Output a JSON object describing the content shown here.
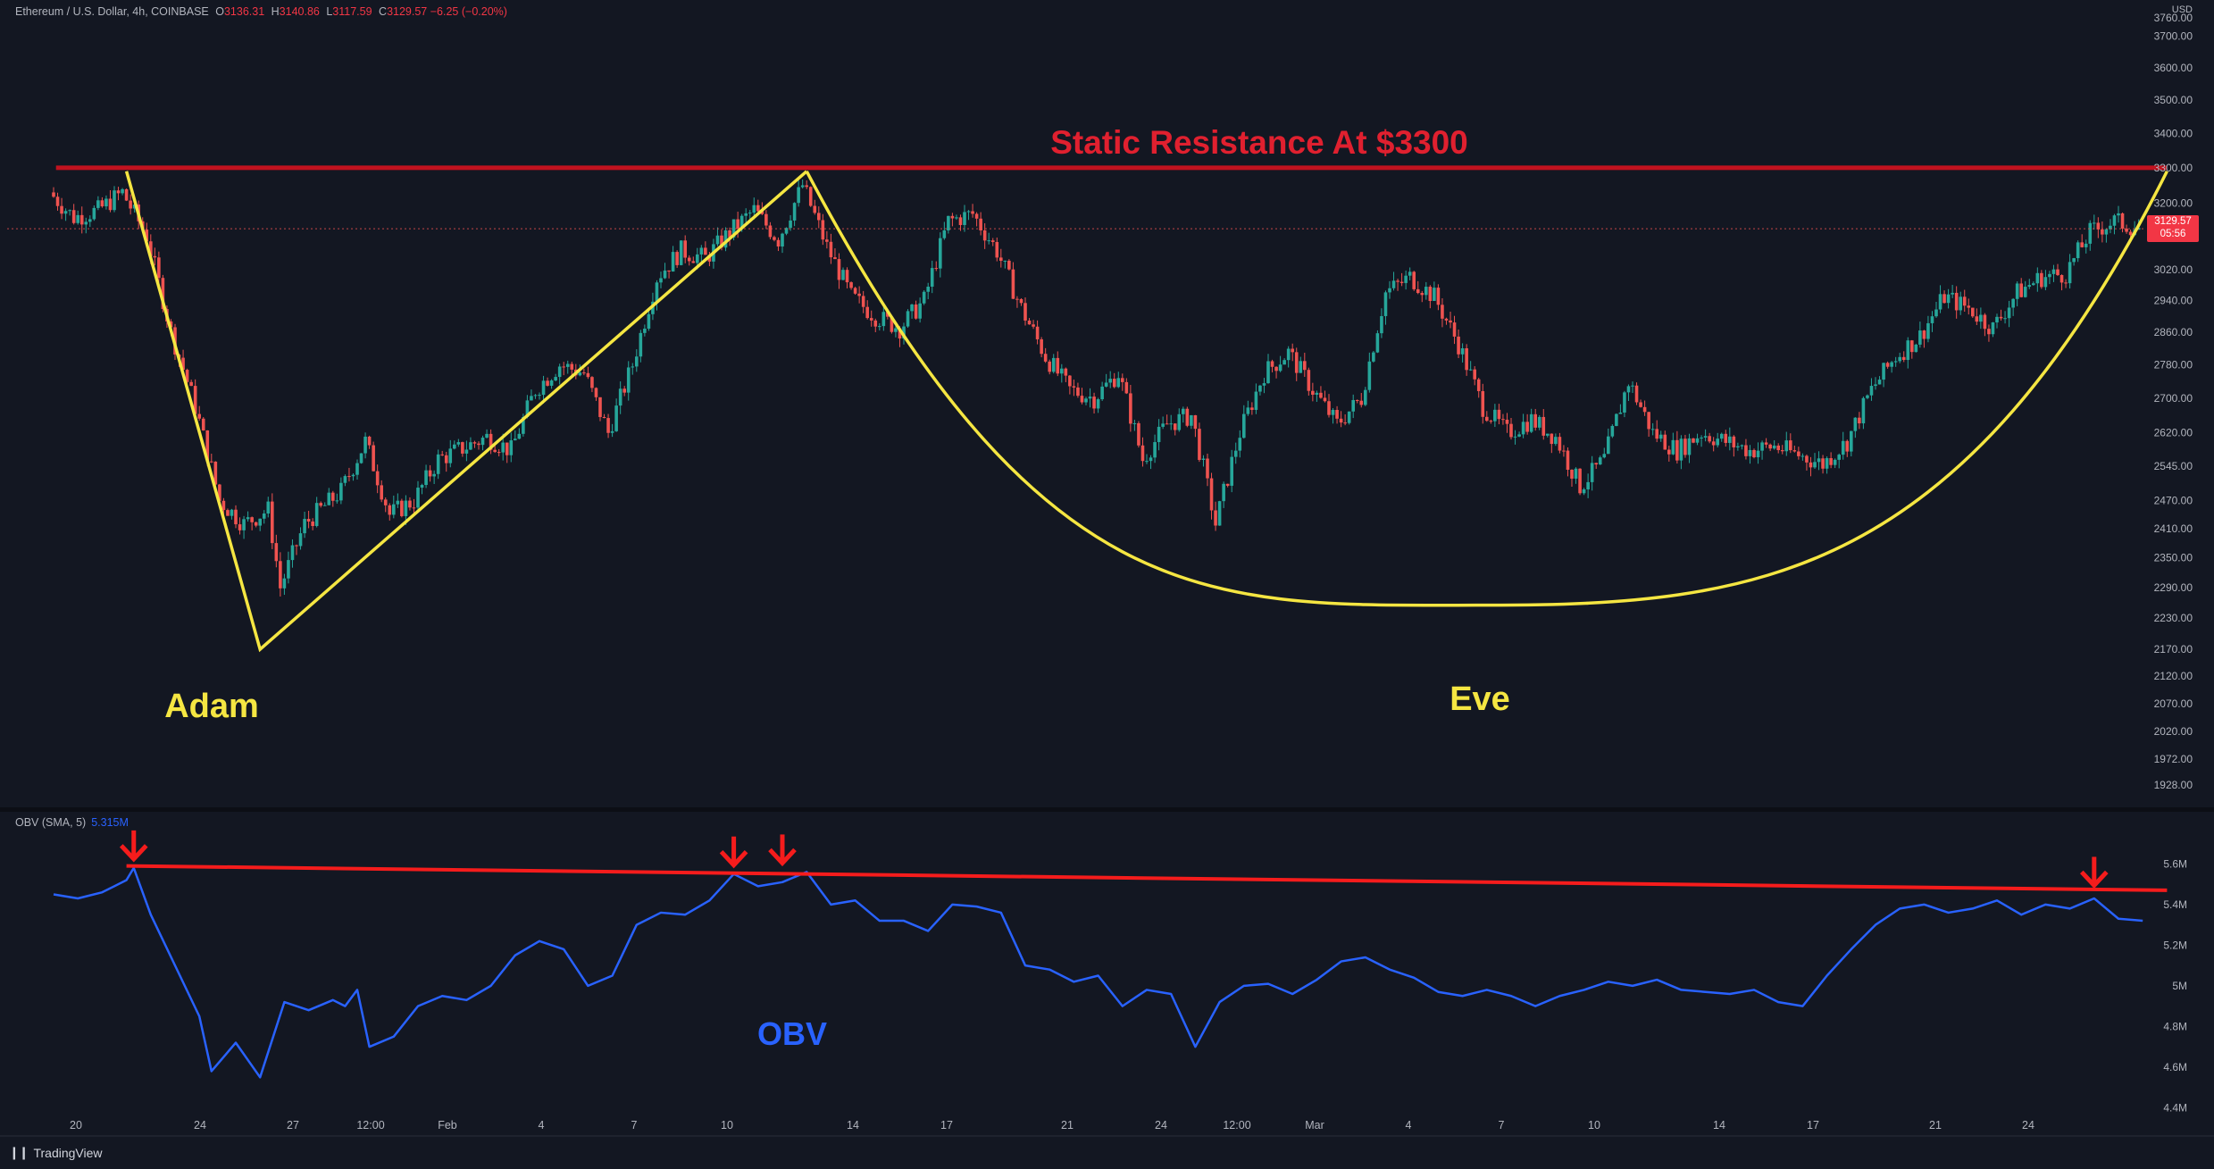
{
  "header": {
    "symbol": "Ethereum / U.S. Dollar, 4h, COINBASE",
    "o_label": "O",
    "o_value": "3136.31",
    "h_label": "H",
    "h_value": "3140.86",
    "l_label": "L",
    "l_value": "3117.59",
    "c_label": "C",
    "c_value": "3129.57",
    "change": "−6.25 (−0.20%)"
  },
  "currency": "USD",
  "price_tag": {
    "price": "3129.57",
    "countdown": "05:56"
  },
  "obv_header": {
    "name": "OBV (SMA, 5)",
    "value": "5.315M"
  },
  "footer": {
    "brand": "TradingView",
    "logo_glyph": "❙❙"
  },
  "colors": {
    "background": "#131722",
    "up": "#26a69a",
    "down": "#ef5350",
    "resistance": "#c1121f",
    "pattern": "#f5e642",
    "obv": "#2962ff",
    "obv_trend": "#f51c1c",
    "annotation_blue": "#2962ff"
  },
  "chart_data": [
    {
      "type": "candlestick",
      "title": "Ethereum / U.S. Dollar, 4h, COINBASE",
      "yscale": "log",
      "ylim": [
        1900,
        3760
      ],
      "y_ticks": [
        "3760.00",
        "3700.00",
        "3600.00",
        "3500.00",
        "3400.00",
        "3300.00",
        "3200.00",
        "3120.00",
        "3020.00",
        "2940.00",
        "2860.00",
        "2780.00",
        "2700.00",
        "2620.00",
        "2545.00",
        "2470.00",
        "2410.00",
        "2350.00",
        "2290.00",
        "2230.00",
        "2170.00",
        "2120.00",
        "2070.00",
        "2020.00",
        "1972.00",
        "1928.00"
      ],
      "x_ticks": [
        "20",
        "24",
        "27",
        "12:00",
        "Feb",
        "4",
        "7",
        "10",
        "14",
        "17",
        "21",
        "24",
        "12:00",
        "Mar",
        "4",
        "7",
        "10",
        "14",
        "17",
        "21",
        "24"
      ],
      "price_path": [
        {
          "day": 0.0,
          "price": 3230
        },
        {
          "day": 1.0,
          "price": 3160
        },
        {
          "day": 2.0,
          "price": 3180
        },
        {
          "day": 3.0,
          "price": 3230
        },
        {
          "day": 4.0,
          "price": 3110
        },
        {
          "day": 5.0,
          "price": 2860
        },
        {
          "day": 6.0,
          "price": 2680
        },
        {
          "day": 7.0,
          "price": 2470
        },
        {
          "day": 8.0,
          "price": 2420
        },
        {
          "day": 9.0,
          "price": 2450
        },
        {
          "day": 9.5,
          "price": 2290
        },
        {
          "day": 10.5,
          "price": 2420
        },
        {
          "day": 12.0,
          "price": 2490
        },
        {
          "day": 13.0,
          "price": 2600
        },
        {
          "day": 14.0,
          "price": 2440
        },
        {
          "day": 15.0,
          "price": 2470
        },
        {
          "day": 16.0,
          "price": 2560
        },
        {
          "day": 18.0,
          "price": 2610
        },
        {
          "day": 19.0,
          "price": 2580
        },
        {
          "day": 20.0,
          "price": 2720
        },
        {
          "day": 21.0,
          "price": 2780
        },
        {
          "day": 22.0,
          "price": 2760
        },
        {
          "day": 23.0,
          "price": 2620
        },
        {
          "day": 24.0,
          "price": 2780
        },
        {
          "day": 25.0,
          "price": 3000
        },
        {
          "day": 26.0,
          "price": 3070
        },
        {
          "day": 27.0,
          "price": 3050
        },
        {
          "day": 28.0,
          "price": 3120
        },
        {
          "day": 29.0,
          "price": 3180
        },
        {
          "day": 30.0,
          "price": 3100
        },
        {
          "day": 31.0,
          "price": 3250
        },
        {
          "day": 32.0,
          "price": 3080
        },
        {
          "day": 33.0,
          "price": 2950
        },
        {
          "day": 34.0,
          "price": 2900
        },
        {
          "day": 35.0,
          "price": 2870
        },
        {
          "day": 36.0,
          "price": 2940
        },
        {
          "day": 37.0,
          "price": 3150
        },
        {
          "day": 38.0,
          "price": 3170
        },
        {
          "day": 39.0,
          "price": 3070
        },
        {
          "day": 40.0,
          "price": 2920
        },
        {
          "day": 41.0,
          "price": 2800
        },
        {
          "day": 42.0,
          "price": 2720
        },
        {
          "day": 43.0,
          "price": 2700
        },
        {
          "day": 44.0,
          "price": 2760
        },
        {
          "day": 45.0,
          "price": 2560
        },
        {
          "day": 46.0,
          "price": 2640
        },
        {
          "day": 47.0,
          "price": 2660
        },
        {
          "day": 48.0,
          "price": 2420
        },
        {
          "day": 49.0,
          "price": 2620
        },
        {
          "day": 50.0,
          "price": 2760
        },
        {
          "day": 51.0,
          "price": 2810
        },
        {
          "day": 52.0,
          "price": 2720
        },
        {
          "day": 53.0,
          "price": 2640
        },
        {
          "day": 54.0,
          "price": 2700
        },
        {
          "day": 55.0,
          "price": 2960
        },
        {
          "day": 56.0,
          "price": 3000
        },
        {
          "day": 57.0,
          "price": 2950
        },
        {
          "day": 58.0,
          "price": 2830
        },
        {
          "day": 59.0,
          "price": 2680
        },
        {
          "day": 60.0,
          "price": 2620
        },
        {
          "day": 61.0,
          "price": 2650
        },
        {
          "day": 62.0,
          "price": 2610
        },
        {
          "day": 63.0,
          "price": 2500
        },
        {
          "day": 64.0,
          "price": 2560
        },
        {
          "day": 65.0,
          "price": 2740
        },
        {
          "day": 66.0,
          "price": 2620
        },
        {
          "day": 67.0,
          "price": 2580
        },
        {
          "day": 68.0,
          "price": 2620
        },
        {
          "day": 69.0,
          "price": 2600
        },
        {
          "day": 70.0,
          "price": 2580
        },
        {
          "day": 71.0,
          "price": 2590
        },
        {
          "day": 72.0,
          "price": 2570
        },
        {
          "day": 73.0,
          "price": 2550
        },
        {
          "day": 74.0,
          "price": 2600
        },
        {
          "day": 75.0,
          "price": 2720
        },
        {
          "day": 76.0,
          "price": 2800
        },
        {
          "day": 77.0,
          "price": 2850
        },
        {
          "day": 78.0,
          "price": 2950
        },
        {
          "day": 79.0,
          "price": 2920
        },
        {
          "day": 80.0,
          "price": 2870
        },
        {
          "day": 81.0,
          "price": 2960
        },
        {
          "day": 82.0,
          "price": 3000
        },
        {
          "day": 83.0,
          "price": 3010
        },
        {
          "day": 84.0,
          "price": 3120
        },
        {
          "day": 85.0,
          "price": 3150
        },
        {
          "day": 86.0,
          "price": 3130
        }
      ],
      "annotations": [
        {
          "text": "Static Resistance At $3300",
          "color": "#e0202f"
        },
        {
          "text": "Adam",
          "color": "#f5e642"
        },
        {
          "text": "Eve",
          "color": "#f5e642"
        }
      ],
      "resistance_level": 3300,
      "adam_pattern": [
        {
          "day": 3.0,
          "price": 3290
        },
        {
          "day": 8.5,
          "price": 2170
        },
        {
          "day": 31.0,
          "price": 3290
        }
      ],
      "eve_pattern": {
        "start": {
          "day": 31.0,
          "price": 3290
        },
        "bottom": {
          "day": 59.0,
          "price": 2255
        },
        "end": {
          "day": 87.0,
          "price": 3290
        }
      },
      "current_price": 3129.57
    },
    {
      "type": "line",
      "name": "OBV (SMA, 5)",
      "y_ticks": [
        "5.6M",
        "5.4M",
        "5.2M",
        "5M",
        "4.8M",
        "4.6M",
        "4.4M"
      ],
      "ylim": [
        4.38,
        5.72
      ],
      "values_path": [
        {
          "day": 0.0,
          "value": 5.45
        },
        {
          "day": 1.0,
          "value": 5.43
        },
        {
          "day": 2.0,
          "value": 5.46
        },
        {
          "day": 3.0,
          "value": 5.52
        },
        {
          "day": 3.3,
          "value": 5.58
        },
        {
          "day": 4.0,
          "value": 5.35
        },
        {
          "day": 5.0,
          "value": 5.1
        },
        {
          "day": 6.0,
          "value": 4.85
        },
        {
          "day": 6.5,
          "value": 4.58
        },
        {
          "day": 7.5,
          "value": 4.72
        },
        {
          "day": 8.5,
          "value": 4.55
        },
        {
          "day": 9.5,
          "value": 4.92
        },
        {
          "day": 10.5,
          "value": 4.88
        },
        {
          "day": 11.5,
          "value": 4.93
        },
        {
          "day": 12.0,
          "value": 4.9
        },
        {
          "day": 12.5,
          "value": 4.98
        },
        {
          "day": 13.0,
          "value": 4.7
        },
        {
          "day": 14.0,
          "value": 4.75
        },
        {
          "day": 15.0,
          "value": 4.9
        },
        {
          "day": 16.0,
          "value": 4.95
        },
        {
          "day": 17.0,
          "value": 4.93
        },
        {
          "day": 18.0,
          "value": 5.0
        },
        {
          "day": 19.0,
          "value": 5.15
        },
        {
          "day": 20.0,
          "value": 5.22
        },
        {
          "day": 21.0,
          "value": 5.18
        },
        {
          "day": 22.0,
          "value": 5.0
        },
        {
          "day": 23.0,
          "value": 5.05
        },
        {
          "day": 24.0,
          "value": 5.3
        },
        {
          "day": 25.0,
          "value": 5.36
        },
        {
          "day": 26.0,
          "value": 5.35
        },
        {
          "day": 27.0,
          "value": 5.42
        },
        {
          "day": 28.0,
          "value": 5.55
        },
        {
          "day": 29.0,
          "value": 5.49
        },
        {
          "day": 30.0,
          "value": 5.51
        },
        {
          "day": 31.0,
          "value": 5.56
        },
        {
          "day": 32.0,
          "value": 5.4
        },
        {
          "day": 33.0,
          "value": 5.42
        },
        {
          "day": 34.0,
          "value": 5.32
        },
        {
          "day": 35.0,
          "value": 5.32
        },
        {
          "day": 36.0,
          "value": 5.27
        },
        {
          "day": 37.0,
          "value": 5.4
        },
        {
          "day": 38.0,
          "value": 5.39
        },
        {
          "day": 39.0,
          "value": 5.36
        },
        {
          "day": 40.0,
          "value": 5.1
        },
        {
          "day": 41.0,
          "value": 5.08
        },
        {
          "day": 42.0,
          "value": 5.02
        },
        {
          "day": 43.0,
          "value": 5.05
        },
        {
          "day": 44.0,
          "value": 4.9
        },
        {
          "day": 45.0,
          "value": 4.98
        },
        {
          "day": 46.0,
          "value": 4.96
        },
        {
          "day": 47.0,
          "value": 4.7
        },
        {
          "day": 48.0,
          "value": 4.92
        },
        {
          "day": 49.0,
          "value": 5.0
        },
        {
          "day": 50.0,
          "value": 5.01
        },
        {
          "day": 51.0,
          "value": 4.96
        },
        {
          "day": 52.0,
          "value": 5.03
        },
        {
          "day": 53.0,
          "value": 5.12
        },
        {
          "day": 54.0,
          "value": 5.14
        },
        {
          "day": 55.0,
          "value": 5.08
        },
        {
          "day": 56.0,
          "value": 5.04
        },
        {
          "day": 57.0,
          "value": 4.97
        },
        {
          "day": 58.0,
          "value": 4.95
        },
        {
          "day": 59.0,
          "value": 4.98
        },
        {
          "day": 60.0,
          "value": 4.95
        },
        {
          "day": 61.0,
          "value": 4.9
        },
        {
          "day": 62.0,
          "value": 4.95
        },
        {
          "day": 63.0,
          "value": 4.98
        },
        {
          "day": 64.0,
          "value": 5.02
        },
        {
          "day": 65.0,
          "value": 5.0
        },
        {
          "day": 66.0,
          "value": 5.03
        },
        {
          "day": 67.0,
          "value": 4.98
        },
        {
          "day": 68.0,
          "value": 4.97
        },
        {
          "day": 69.0,
          "value": 4.96
        },
        {
          "day": 70.0,
          "value": 4.98
        },
        {
          "day": 71.0,
          "value": 4.92
        },
        {
          "day": 72.0,
          "value": 4.9
        },
        {
          "day": 73.0,
          "value": 5.05
        },
        {
          "day": 74.0,
          "value": 5.18
        },
        {
          "day": 75.0,
          "value": 5.3
        },
        {
          "day": 76.0,
          "value": 5.38
        },
        {
          "day": 77.0,
          "value": 5.4
        },
        {
          "day": 78.0,
          "value": 5.36
        },
        {
          "day": 79.0,
          "value": 5.38
        },
        {
          "day": 80.0,
          "value": 5.42
        },
        {
          "day": 81.0,
          "value": 5.35
        },
        {
          "day": 82.0,
          "value": 5.4
        },
        {
          "day": 83.0,
          "value": 5.38
        },
        {
          "day": 84.0,
          "value": 5.43
        },
        {
          "day": 85.0,
          "value": 5.33
        },
        {
          "day": 86.0,
          "value": 5.32
        }
      ],
      "trendline": [
        {
          "day": 3.0,
          "value": 5.59
        },
        {
          "day": 87.0,
          "value": 5.47
        }
      ],
      "peak_arrows": [
        {
          "day": 3.3,
          "value": 5.58
        },
        {
          "day": 28.0,
          "value": 5.55
        },
        {
          "day": 30.0,
          "value": 5.56
        },
        {
          "day": 84.0,
          "value": 5.45
        }
      ],
      "annotation": {
        "text": "OBV",
        "color": "#2962ff"
      }
    }
  ]
}
